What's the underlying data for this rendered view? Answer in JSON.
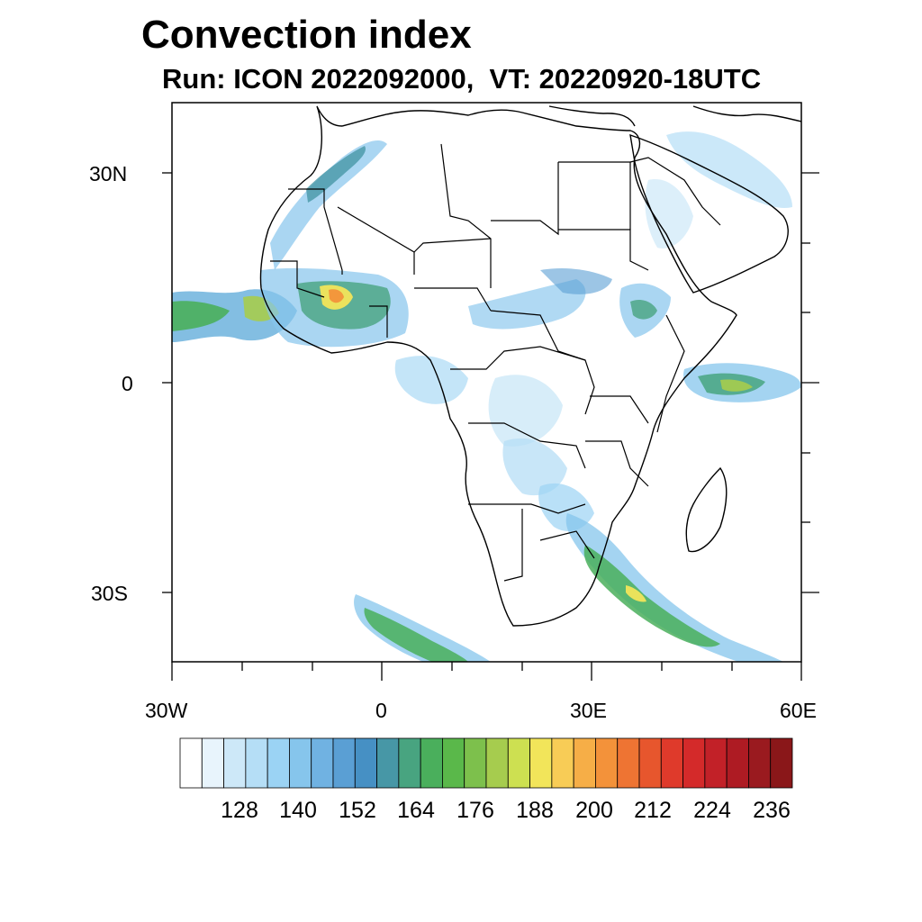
{
  "title": "Convection index",
  "subtitle": "Run: ICON 2022092000,  VT: 20220920-18UTC",
  "axes": {
    "lat_labels": [
      "30N",
      "0",
      "30S"
    ],
    "lon_labels": [
      "30W",
      "0",
      "30E",
      "60E"
    ]
  },
  "colorbar": {
    "labels": [
      "128",
      "140",
      "152",
      "164",
      "176",
      "188",
      "200",
      "212",
      "224",
      "236"
    ],
    "colors": [
      "#ffffff",
      "#e8f4fc",
      "#cde8f8",
      "#b5def6",
      "#9bd3f4",
      "#86c5ec",
      "#70b2e2",
      "#5a9fd4",
      "#4690c4",
      "#4797a6",
      "#48a480",
      "#4aaf5c",
      "#5ab84a",
      "#7dc04c",
      "#a6cc4e",
      "#cde051",
      "#f2e55a",
      "#f8cc56",
      "#f6ae47",
      "#f3923a",
      "#ee7433",
      "#e7562d",
      "#df3a2b",
      "#d42a2a",
      "#c22128",
      "#ae1b23",
      "#9a1a1f",
      "#8a1719"
    ]
  }
}
